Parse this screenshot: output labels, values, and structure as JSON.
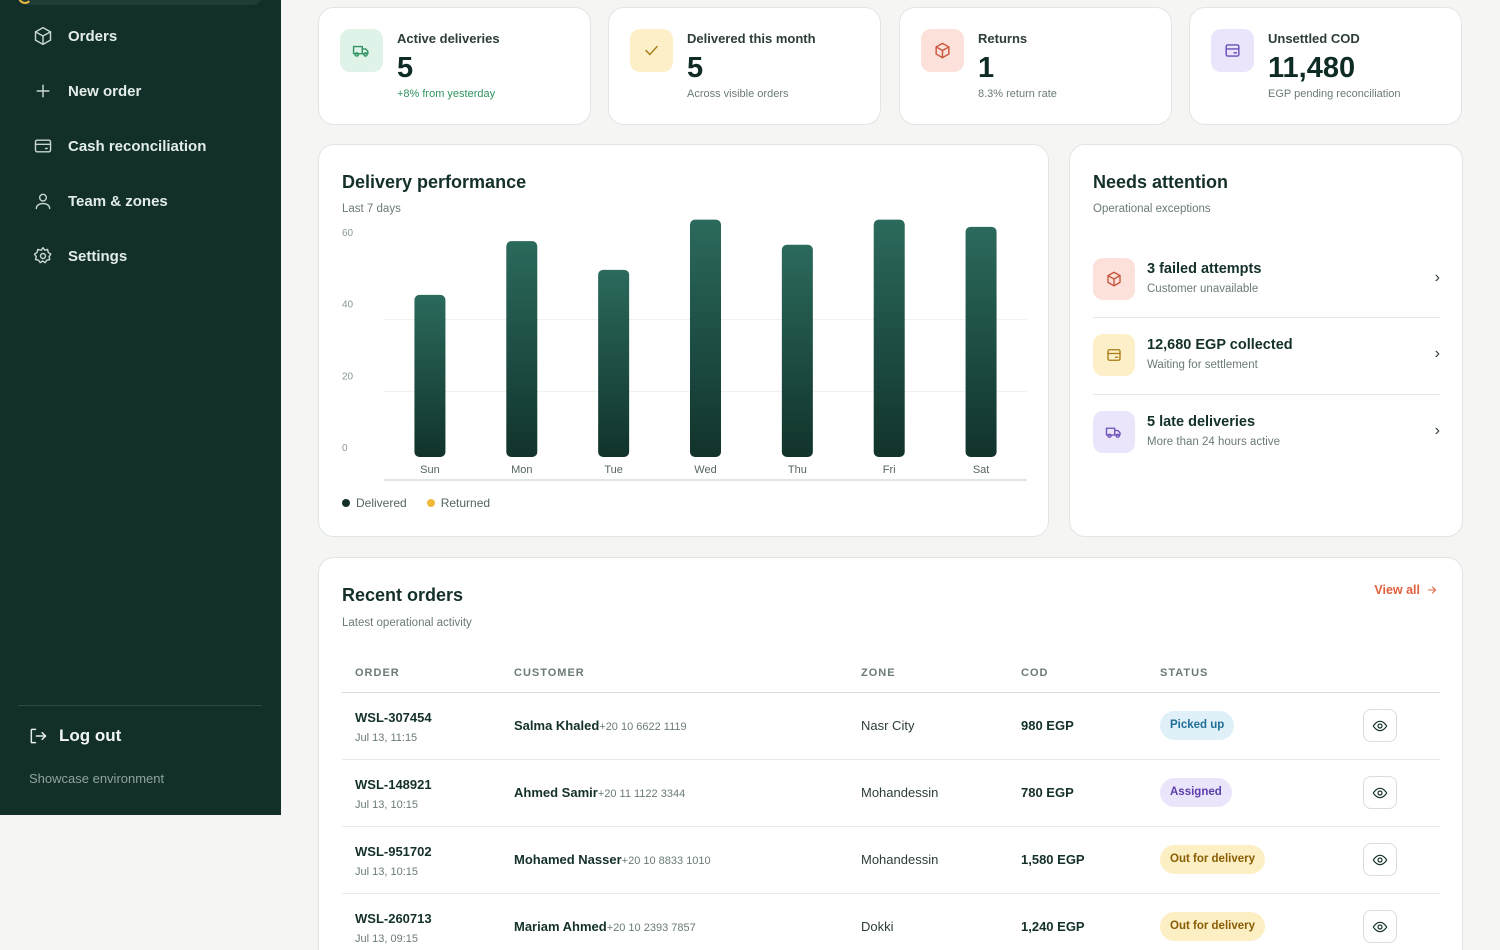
{
  "sidebar": {
    "items": [
      {
        "label": "Orders",
        "icon": "box-icon"
      },
      {
        "label": "New order",
        "icon": "plus-icon"
      },
      {
        "label": "Cash reconciliation",
        "icon": "wallet-icon"
      },
      {
        "label": "Team & zones",
        "icon": "user-icon"
      },
      {
        "label": "Settings",
        "icon": "gear-icon"
      }
    ],
    "logout_label": "Log out",
    "environment": "Showcase environment"
  },
  "stats": [
    {
      "title": "Active deliveries",
      "value": "5",
      "sub": "+8% from yesterday",
      "icon": "truck-icon",
      "color": "#2f9460",
      "bg": "#e0f3e8"
    },
    {
      "title": "Delivered this month",
      "value": "5",
      "sub": "Across visible orders",
      "icon": "check-icon",
      "color": "#a87a12",
      "bg": "#fdf0c8"
    },
    {
      "title": "Returns",
      "value": "1",
      "sub": "8.3% return rate",
      "icon": "box-icon",
      "color": "#c9553c",
      "bg": "#fbe1da"
    },
    {
      "title": "Unsettled COD",
      "value": "11,480",
      "sub": "EGP pending reconciliation",
      "icon": "wallet-icon",
      "color": "#6b4fb8",
      "bg": "#ebe5fb"
    }
  ],
  "performance": {
    "title": "Delivery performance",
    "subtitle": "Last 7 days"
  },
  "chart_data": {
    "type": "bar",
    "categories": [
      "Sun",
      "Mon",
      "Tue",
      "Wed",
      "Thu",
      "Fri",
      "Sat"
    ],
    "series": [
      {
        "name": "Delivered",
        "values": [
          43,
          58,
          50,
          64,
          57,
          64,
          62
        ],
        "color": "#1f5247"
      },
      {
        "name": "Returned",
        "values": [
          0,
          0,
          0,
          0,
          0,
          0,
          0
        ],
        "color": "#f0b93a"
      }
    ],
    "yticks": [
      "60",
      "40",
      "20",
      "0"
    ],
    "ylim": [
      0,
      60
    ],
    "grid": true,
    "legend": "bottom-left"
  },
  "attention": {
    "title": "Needs attention",
    "subtitle": "Operational exceptions",
    "items": [
      {
        "title": "3 failed attempts",
        "sub": "Customer unavailable",
        "icon": "box-icon",
        "color": "#c9553c",
        "bg": "#fbe1da"
      },
      {
        "title": "12,680 EGP collected",
        "sub": "Waiting for settlement",
        "icon": "wallet-icon",
        "color": "#a87a12",
        "bg": "#fdf0c8"
      },
      {
        "title": "5 late deliveries",
        "sub": "More than 24 hours active",
        "icon": "truck-icon",
        "color": "#6b4fb8",
        "bg": "#ebe5fb"
      }
    ],
    "chevron": "›"
  },
  "orders": {
    "title": "Recent orders",
    "subtitle": "Latest operational activity",
    "view_all": "View all",
    "columns": [
      "ORDER",
      "CUSTOMER",
      "ZONE",
      "COD",
      "STATUS"
    ],
    "rows": [
      {
        "id": "WSL-307454",
        "time": "Jul 13, 11:15",
        "name": "Salma Khaled",
        "phone": "+20 10 6622 1119",
        "zone": "Nasr City",
        "cod": "980 EGP",
        "status": "Picked up",
        "status_fg": "#1e6e96",
        "status_bg": "#dff0f9"
      },
      {
        "id": "WSL-148921",
        "time": "Jul 13, 10:15",
        "name": "Ahmed Samir",
        "phone": "+20 11 1122 3344",
        "zone": "Mohandessin",
        "cod": "780 EGP",
        "status": "Assigned",
        "status_fg": "#5b3fa8",
        "status_bg": "#ebe5fb"
      },
      {
        "id": "WSL-951702",
        "time": "Jul 13, 10:15",
        "name": "Mohamed Nasser",
        "phone": "+20 10 8833 1010",
        "zone": "Mohandessin",
        "cod": "1,580 EGP",
        "status": "Out for delivery",
        "status_fg": "#8a5d05",
        "status_bg": "#fdefc4"
      },
      {
        "id": "WSL-260713",
        "time": "Jul 13, 09:15",
        "name": "Mariam Ahmed",
        "phone": "+20 10 2393 7857",
        "zone": "Dokki",
        "cod": "1,240 EGP",
        "status": "Out for delivery",
        "status_fg": "#8a5d05",
        "status_bg": "#fdefc4"
      }
    ]
  }
}
